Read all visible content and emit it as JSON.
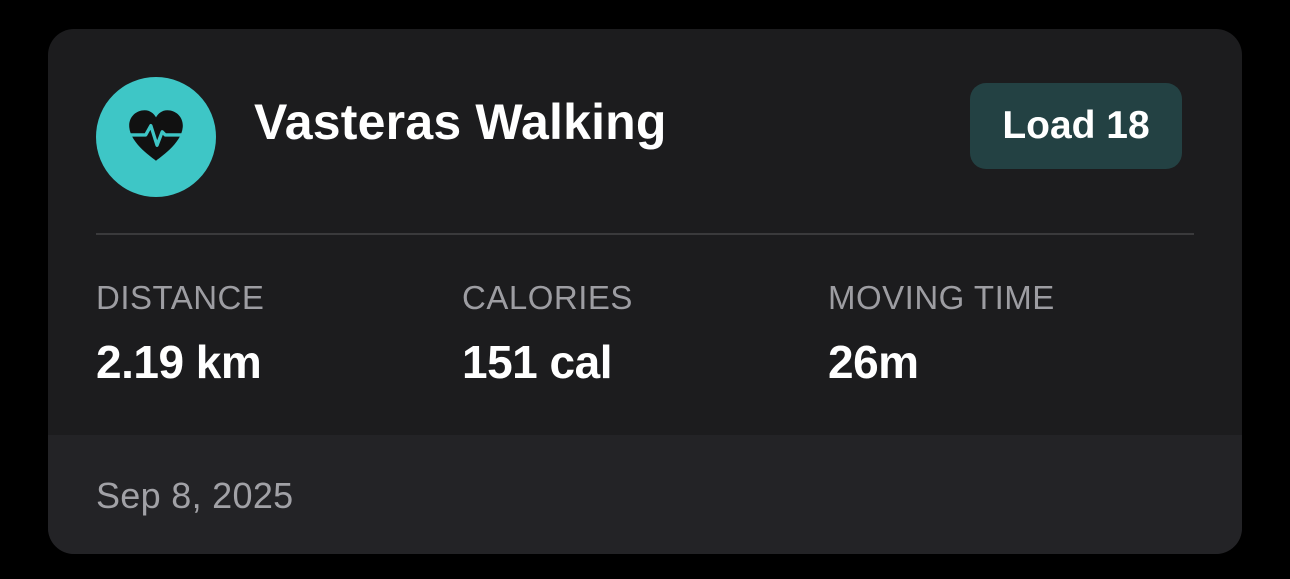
{
  "activity": {
    "icon": "heart-pulse-icon",
    "title": "Vasteras Walking",
    "load_label": "Load 18"
  },
  "stats": [
    {
      "label": "DISTANCE",
      "value": "2.19 km"
    },
    {
      "label": "CALORIES",
      "value": "151 cal"
    },
    {
      "label": "MOVING TIME",
      "value": "26m"
    }
  ],
  "footer": {
    "date": "Sep 8, 2025"
  },
  "colors": {
    "accent": "#3ec6c6",
    "badge_bg": "#234143",
    "card_bg": "#1c1c1e",
    "footer_bg": "#232326"
  }
}
